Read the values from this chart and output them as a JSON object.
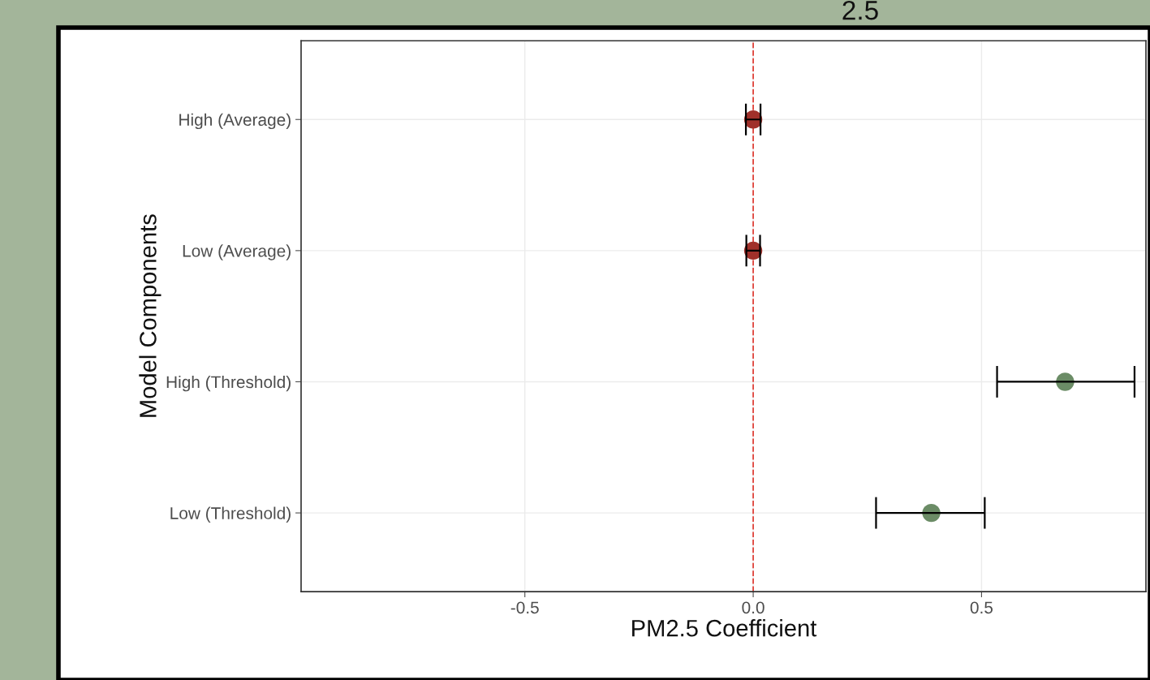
{
  "chart_data": {
    "type": "scatter",
    "title": "2.5",
    "xlabel": "PM2.5 Coefficient",
    "ylabel": "Model Components",
    "categories": [
      "High (Average)",
      "Low (Average)",
      "High (Threshold)",
      "Low (Threshold)"
    ],
    "values": [
      0.0,
      0.0,
      0.683,
      0.39
    ],
    "colors": [
      "#a0302a",
      "#a0302a",
      "#6b8c66",
      "#6b8c66"
    ],
    "errors": [
      [
        -0.016,
        0.016
      ],
      [
        -0.015,
        0.015
      ],
      [
        0.534,
        0.835
      ],
      [
        0.269,
        0.507
      ]
    ],
    "orientation": "horizontal",
    "xlim": [
      -0.99,
      0.86
    ],
    "xticks": [
      {
        "value": -0.5,
        "label": "-0.5"
      },
      {
        "value": 0,
        "label": "0.0"
      },
      {
        "value": 0.5,
        "label": "0.5"
      }
    ],
    "ref_lines": [
      {
        "axis": "x",
        "value": 0,
        "color": "#e0443c",
        "line_style": "dashed"
      }
    ],
    "grid": true,
    "marker": "circle"
  }
}
